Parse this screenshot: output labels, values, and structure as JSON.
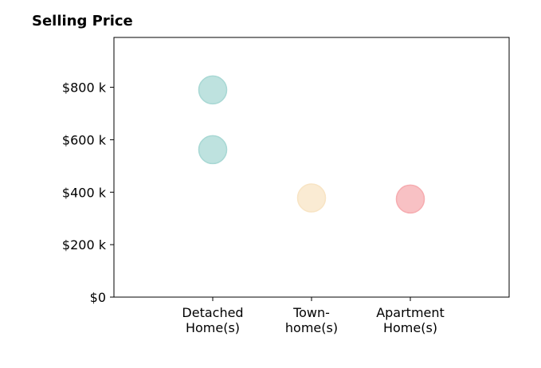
{
  "chart_data": {
    "type": "scatter",
    "title": "Selling Price",
    "xlabel": "",
    "ylabel": "",
    "categories": [
      [
        "Detached",
        "Home(s)"
      ],
      [
        "Town-",
        "home(s)"
      ],
      [
        "Apartment",
        "Home(s)"
      ]
    ],
    "y_ticks": [
      {
        "value": 0,
        "label": "$0"
      },
      {
        "value": 200,
        "label": "$200 k"
      },
      {
        "value": 400,
        "label": "$400 k"
      },
      {
        "value": 600,
        "label": "$600 k"
      },
      {
        "value": 800,
        "label": "$800 k"
      }
    ],
    "ylim": [
      0,
      990
    ],
    "xlim": [
      0,
      4
    ],
    "grid": false,
    "points": [
      {
        "category": 0,
        "value": 790,
        "color": "#a8d8d4"
      },
      {
        "category": 0,
        "value": 562,
        "color": "#a8d8d4"
      },
      {
        "category": 1,
        "value": 378,
        "color": "#f8e4c4"
      },
      {
        "category": 2,
        "value": 374,
        "color": "#f6acb0"
      }
    ]
  }
}
